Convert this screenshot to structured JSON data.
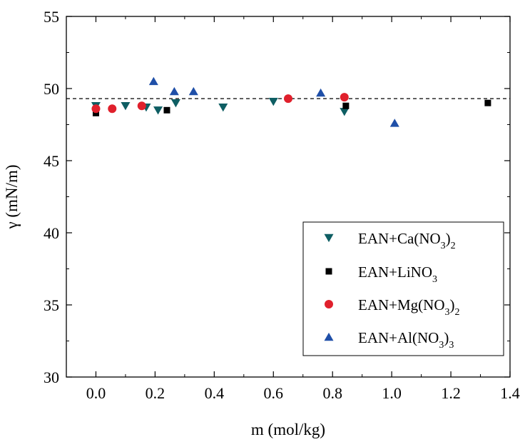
{
  "chart_data": {
    "type": "scatter",
    "xlabel": "m (mol/kg)",
    "ylabel_symbol": "γ",
    "ylabel_rest": " (mN/m)",
    "xlim": [
      -0.1,
      1.4
    ],
    "ylim": [
      30,
      55
    ],
    "xticks": [
      0.0,
      0.2,
      0.4,
      0.6,
      0.8,
      1.0,
      1.2,
      1.4
    ],
    "xtick_labels": [
      "0.0",
      "0.2",
      "0.4",
      "0.6",
      "0.8",
      "1.0",
      "1.2",
      "1.4"
    ],
    "yticks": [
      30,
      35,
      40,
      45,
      50,
      55
    ],
    "ytick_labels": [
      "30",
      "35",
      "40",
      "45",
      "50",
      "55"
    ],
    "grid": false,
    "legend_position": "bottom-right",
    "reference_line": {
      "y": 49.3,
      "style": "dashed"
    },
    "series": [
      {
        "name": "EAN+Ca(NO3)2",
        "legend_parts": [
          {
            "text": "EAN+Ca(NO",
            "sub": false
          },
          {
            "text": "3",
            "sub": true
          },
          {
            "text": ")",
            "sub": false
          },
          {
            "text": "2",
            "sub": true
          }
        ],
        "marker": "triangle-down",
        "color": "#0e5e63",
        "x": [
          0.0,
          0.1,
          0.17,
          0.21,
          0.27,
          0.43,
          0.6,
          0.84
        ],
        "y": [
          48.8,
          48.8,
          48.7,
          48.5,
          49.0,
          48.7,
          49.1,
          48.4
        ]
      },
      {
        "name": "EAN+LiNO3",
        "legend_parts": [
          {
            "text": "EAN+LiNO",
            "sub": false
          },
          {
            "text": "3",
            "sub": true
          }
        ],
        "marker": "square",
        "color": "#000000",
        "x": [
          0.0,
          0.24,
          0.845,
          1.325
        ],
        "y": [
          48.3,
          48.5,
          48.8,
          49.0
        ]
      },
      {
        "name": "EAN+Mg(NO3)2",
        "legend_parts": [
          {
            "text": "EAN+Mg(NO",
            "sub": false
          },
          {
            "text": "3",
            "sub": true
          },
          {
            "text": ")",
            "sub": false
          },
          {
            "text": "2",
            "sub": true
          }
        ],
        "marker": "circle",
        "color": "#e0202c",
        "x": [
          0.0,
          0.055,
          0.155,
          0.65,
          0.84
        ],
        "y": [
          48.6,
          48.6,
          48.8,
          49.3,
          49.4
        ]
      },
      {
        "name": "EAN+Al(NO3)3",
        "legend_parts": [
          {
            "text": "EAN+Al(NO",
            "sub": false
          },
          {
            "text": "3",
            "sub": true
          },
          {
            "text": ")",
            "sub": false
          },
          {
            "text": "3",
            "sub": true
          }
        ],
        "marker": "triangle-up",
        "color": "#1f4fa8",
        "x": [
          0.195,
          0.265,
          0.33,
          0.76,
          1.01
        ],
        "y": [
          50.5,
          49.8,
          49.8,
          49.7,
          47.6
        ]
      }
    ]
  }
}
